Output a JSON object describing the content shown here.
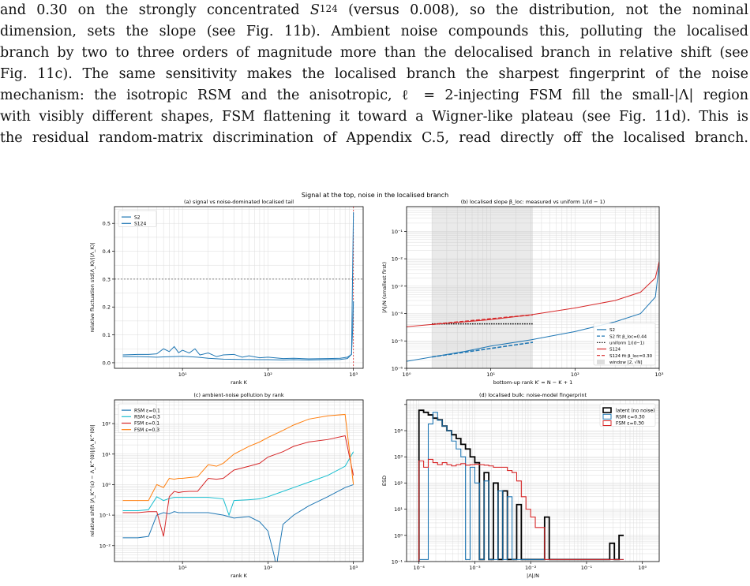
{
  "text": {
    "lines": [
      [
        "and 0.30 on the strongly concentrated ",
        "S",
        "124",
        " (versus 0.008), so the distribution, not the nominal"
      ],
      [
        "dimension, sets the slope (see Fig. 11b). Ambient noise compounds this, polluting the localised"
      ],
      [
        "branch by two to three orders of magnitude more than the delocalised branch in relative shift (see"
      ],
      [
        "Fig. 11c). The same sensitivity makes the localised branch the sharpest fingerprint of the noise"
      ],
      [
        "mechanism: the isotropic RSM and the anisotropic, ℓ = 2-injecting FSM fill the small-|Λ| region"
      ],
      [
        "with visibly different shapes, FSM flattening it toward a Wigner-like plateau (see Fig. 11d). This is"
      ],
      [
        "the residual random-matrix discrimination of Appendix C.5, read directly off the localised branch."
      ]
    ]
  },
  "figure": {
    "suptitle": "Signal at the top, noise in the localised branch",
    "colors": {
      "S2": "#1f77b4",
      "S124": "#d62728",
      "RSM01": "#1f77b4",
      "RSM03": "#17becf",
      "FSM01": "#d62728",
      "FSM03": "#ff7f0e",
      "latent": "#000000"
    }
  },
  "chart_data": [
    {
      "id": "a",
      "type": "line",
      "title": "(a) signal vs noise-dominated localised tail",
      "xlabel": "rank K",
      "ylabel": "relative fluctuation std(Λ_K)/|⟨Λ_K⟩|",
      "xscale": "log",
      "xlim": [
        1.6,
        1300
      ],
      "ylim": [
        -0.02,
        0.56
      ],
      "yticks": [
        0.0,
        0.1,
        0.2,
        0.3,
        0.4,
        0.5
      ],
      "xticks": [
        "10¹",
        "10²",
        "10³"
      ],
      "hline": 0.3,
      "vline": 1000,
      "legend": "top-left",
      "series": [
        {
          "name": "S2",
          "x": [
            2,
            3,
            4,
            5,
            6,
            8,
            10,
            15,
            20,
            30,
            50,
            80,
            100,
            150,
            200,
            300,
            500,
            700,
            850,
            950,
            1000
          ],
          "y": [
            0.022,
            0.022,
            0.021,
            0.02,
            0.021,
            0.022,
            0.023,
            0.02,
            0.016,
            0.013,
            0.012,
            0.011,
            0.011,
            0.01,
            0.011,
            0.01,
            0.011,
            0.012,
            0.015,
            0.03,
            0.54
          ]
        },
        {
          "name": "S124",
          "x": [
            2,
            3,
            4,
            5,
            6,
            7,
            8,
            9,
            10,
            12,
            14,
            16,
            20,
            25,
            30,
            40,
            50,
            60,
            80,
            100,
            150,
            200,
            300,
            500,
            700,
            850,
            950,
            980,
            1000
          ],
          "y": [
            0.028,
            0.03,
            0.03,
            0.032,
            0.05,
            0.04,
            0.058,
            0.036,
            0.045,
            0.035,
            0.05,
            0.028,
            0.035,
            0.022,
            0.028,
            0.03,
            0.02,
            0.025,
            0.018,
            0.02,
            0.015,
            0.016,
            0.014,
            0.015,
            0.016,
            0.02,
            0.03,
            0.12,
            0.22
          ]
        }
      ]
    },
    {
      "id": "b",
      "type": "line",
      "title": "(b) localised slope β_loc: measured vs uniform 1/(d − 1)",
      "xlabel": "bottom-up rank K′ = N − K + 1",
      "ylabel": "|Λ|/N (smallest first)",
      "xscale": "log",
      "yscale": "log",
      "xlim": [
        1,
        1000
      ],
      "ylim": [
        1e-06,
        0.8
      ],
      "yticks": [
        "10⁻⁶",
        "10⁻⁵",
        "10⁻⁴",
        "10⁻³",
        "10⁻²",
        "10⁻¹"
      ],
      "xticks": [
        "10⁰",
        "10¹",
        "10²",
        "10³"
      ],
      "window": [
        2,
        31.6
      ],
      "legend": "bottom-right",
      "series": [
        {
          "name": "S2",
          "x": [
            1,
            2,
            5,
            10,
            30,
            100,
            300,
            600,
            900,
            1000
          ],
          "y": [
            1.8e-06,
            2.6e-06,
            4.2e-06,
            6.5e-06,
            1.1e-05,
            2.2e-05,
            5e-05,
            0.0001,
            0.0004,
            0.006
          ]
        },
        {
          "name": "S2 fit β_loc=0.44",
          "x": [
            2,
            31.6
          ],
          "y": [
            2.6e-06,
            8.9e-06
          ]
        },
        {
          "name": "uniform 1/(d−1)",
          "x": [
            2,
            31.6
          ],
          "y": [
            4.2e-05,
            4.2e-05
          ]
        },
        {
          "name": "S124",
          "x": [
            1,
            2,
            5,
            10,
            30,
            100,
            300,
            600,
            900,
            1000
          ],
          "y": [
            3.3e-05,
            4e-05,
            5e-05,
            6e-05,
            9e-05,
            0.00016,
            0.0003,
            0.0006,
            0.002,
            0.008
          ]
        },
        {
          "name": "S124 fit β_loc=0.30",
          "x": [
            2,
            31.6
          ],
          "y": [
            4e-05,
            9e-05
          ]
        },
        {
          "name": "window [2, √N]"
        }
      ]
    },
    {
      "id": "c",
      "type": "line",
      "title": "(c) ambient-noise pollution by rank",
      "xlabel": "rank K",
      "ylabel": "relative shift |Λ_K^(ε) − Λ_K^(0)|/|Λ_K^(0)|",
      "xscale": "log",
      "yscale": "log",
      "xlim": [
        1.6,
        1300
      ],
      "ylim": [
        0.003,
        600
      ],
      "yticks": [
        "10⁻²",
        "10⁻¹",
        "10⁰",
        "10¹",
        "10²"
      ],
      "xticks": [
        "10¹",
        "10²",
        "10³"
      ],
      "legend": "top-left",
      "series": [
        {
          "name": "RSM ε=0.1",
          "x": [
            2,
            3,
            4,
            5,
            6,
            7,
            8,
            9,
            10,
            15,
            20,
            30,
            40,
            60,
            80,
            100,
            120,
            125,
            130,
            150,
            200,
            300,
            500,
            800,
            1000
          ],
          "y": [
            0.018,
            0.018,
            0.02,
            0.1,
            0.12,
            0.11,
            0.13,
            0.12,
            0.12,
            0.12,
            0.12,
            0.1,
            0.08,
            0.09,
            0.06,
            0.03,
            0.004,
            0.0015,
            0.004,
            0.05,
            0.1,
            0.2,
            0.4,
            0.8,
            1.0
          ]
        },
        {
          "name": "RSM ε=0.3",
          "x": [
            2,
            3,
            4,
            5,
            6,
            7,
            8,
            9,
            10,
            15,
            20,
            30,
            35,
            40,
            60,
            80,
            100,
            150,
            200,
            300,
            500,
            800,
            1000
          ],
          "y": [
            0.14,
            0.14,
            0.15,
            0.4,
            0.3,
            0.35,
            0.38,
            0.38,
            0.38,
            0.38,
            0.38,
            0.34,
            0.1,
            0.3,
            0.32,
            0.34,
            0.4,
            0.6,
            0.8,
            1.2,
            2.0,
            4.0,
            12
          ]
        },
        {
          "name": "FSM ε=0.1",
          "x": [
            2,
            3,
            4,
            5,
            6,
            7,
            8,
            9,
            10,
            12,
            15,
            20,
            25,
            30,
            40,
            60,
            80,
            100,
            150,
            200,
            300,
            500,
            800,
            1000
          ],
          "y": [
            0.12,
            0.12,
            0.13,
            0.13,
            0.02,
            0.4,
            0.6,
            0.55,
            0.58,
            0.6,
            0.6,
            1.6,
            1.5,
            1.6,
            3.0,
            4.0,
            5.0,
            8.0,
            12,
            18,
            25,
            30,
            40,
            2
          ]
        },
        {
          "name": "FSM ε=0.3",
          "x": [
            2,
            3,
            4,
            5,
            6,
            7,
            8,
            9,
            10,
            12,
            15,
            20,
            25,
            30,
            40,
            60,
            80,
            100,
            150,
            200,
            300,
            500,
            800,
            1000
          ],
          "y": [
            0.3,
            0.3,
            0.3,
            1.0,
            0.8,
            1.6,
            1.5,
            1.6,
            1.6,
            1.7,
            1.8,
            4.5,
            4.0,
            5.0,
            10,
            18,
            25,
            35,
            60,
            90,
            140,
            180,
            200,
            1
          ]
        }
      ]
    },
    {
      "id": "d",
      "type": "bar",
      "title": "(d) localised bulk: noise-model fingerprint",
      "xlabel": "|Λ|/N",
      "ylabel": "ESD",
      "xscale": "log",
      "yscale": "log",
      "xlim": [
        6e-05,
        2
      ],
      "ylim": [
        0.01,
        15000
      ],
      "yticks": [
        "10⁻¹",
        "10⁰",
        "10¹",
        "10²",
        "10³",
        "10⁴"
      ],
      "xticks": [
        "10⁻⁴",
        "10⁻³",
        "10⁻²",
        "10⁻¹",
        "10⁰"
      ],
      "legend": "top-right",
      "series": [
        {
          "name": "latent (no noise)",
          "edges_log10": -4.0,
          "step": 0.0833,
          "counts": [
            6000,
            5000,
            4000,
            3000,
            2600,
            1500,
            1000,
            700,
            500,
            300,
            200,
            100,
            60,
            0.012,
            25,
            0.012,
            10,
            0.012,
            5,
            0.012,
            0.012,
            1.5,
            0.012,
            0.012,
            0.012,
            0.012,
            0.012,
            0.5,
            0.012,
            0.012,
            0.012,
            0.012,
            0.012,
            0.012,
            0.012,
            0.012,
            0.012,
            0.012,
            0.012,
            0.012,
            0.012,
            0.05,
            0.012,
            0.1
          ]
        },
        {
          "name": "RSM ε=0.30",
          "edges_log10": -4.0,
          "step": 0.0833,
          "counts": [
            0.012,
            0.012,
            1800,
            5000,
            2500,
            1500,
            1000,
            400,
            200,
            100,
            0.012,
            40,
            10,
            0.012,
            12,
            0.012,
            0.012,
            5,
            0.012,
            3,
            0.012,
            0.012,
            0.012,
            0.012,
            0.012,
            0.012,
            0.012,
            0.012,
            0.012,
            0.012,
            0.012,
            0.012,
            0.012,
            0.012,
            0.012,
            0.012,
            0.012,
            0.012,
            0.012,
            0.012,
            0.012,
            0.012,
            0.012,
            0.012
          ]
        },
        {
          "name": "FSM ε=0.30",
          "edges_log10": -4.0,
          "step": 0.0833,
          "counts": [
            70,
            40,
            80,
            60,
            50,
            60,
            50,
            45,
            50,
            55,
            48,
            50,
            52,
            50,
            48,
            45,
            40,
            40,
            40,
            30,
            25,
            12,
            3,
            1,
            0.5,
            0.2,
            0.2,
            0.012,
            0.012,
            0.012,
            0.012,
            0.012,
            0.012,
            0.012,
            0.012,
            0.012,
            0.012,
            0.012,
            0.012,
            0.012,
            0.012,
            0.012,
            0.012,
            0.012
          ]
        }
      ]
    }
  ]
}
